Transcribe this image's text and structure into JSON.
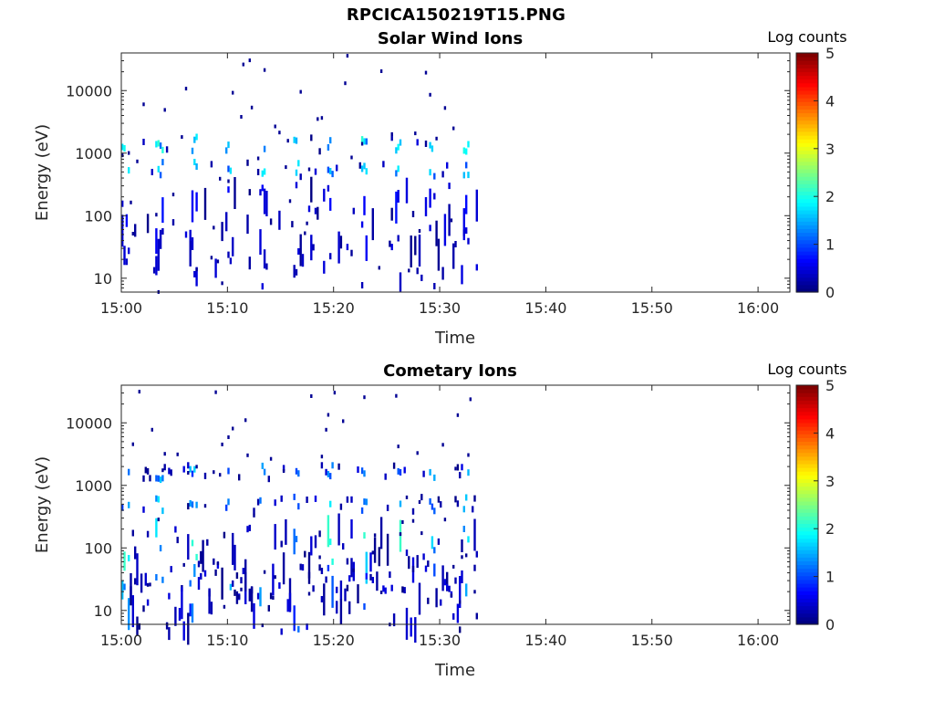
{
  "figure": {
    "title": "RPCICA150219T15.PNG"
  },
  "chart_data": [
    {
      "type": "heatmap",
      "title": "Solar Wind Ions",
      "xlabel": "Time",
      "ylabel": "Energy (eV)",
      "x_ticks": [
        "15:00",
        "15:10",
        "15:20",
        "15:30",
        "15:40",
        "15:50",
        "16:00"
      ],
      "x_range_minutes": [
        0,
        63
      ],
      "y_scale": "log",
      "y_range": [
        6,
        40000
      ],
      "y_ticks": [
        10,
        100,
        1000,
        10000
      ],
      "colorbar": {
        "label": "Log counts",
        "ticks": [
          0,
          1,
          2,
          3,
          4,
          5
        ],
        "range": [
          0,
          5
        ],
        "colormap": "jet"
      },
      "data_extent_minutes": [
        0,
        33.5
      ],
      "bands": [
        {
          "energy": 1400,
          "value": 1.8
        },
        {
          "energy": 550,
          "value": 1.6
        },
        {
          "energy": 100,
          "value": 0.6
        },
        {
          "energy": 25,
          "value": 0.4
        }
      ]
    },
    {
      "type": "heatmap",
      "title": "Cometary Ions",
      "xlabel": "Time",
      "ylabel": "Energy (eV)",
      "x_ticks": [
        "15:00",
        "15:10",
        "15:20",
        "15:30",
        "15:40",
        "15:50",
        "16:00"
      ],
      "x_range_minutes": [
        0,
        63
      ],
      "y_scale": "log",
      "y_range": [
        6,
        40000
      ],
      "y_ticks": [
        10,
        100,
        1000,
        10000
      ],
      "colorbar": {
        "label": "Log counts",
        "ticks": [
          0,
          1,
          2,
          3,
          4,
          5
        ],
        "range": [
          0,
          5
        ],
        "colormap": "jet"
      },
      "data_extent_minutes": [
        0,
        33.5
      ],
      "bands": [
        {
          "energy": 1600,
          "value": 1.4
        },
        {
          "energy": 500,
          "value": 1.5
        },
        {
          "energy": 60,
          "value": 1.8
        },
        {
          "energy": 15,
          "value": 1.2
        }
      ]
    }
  ]
}
